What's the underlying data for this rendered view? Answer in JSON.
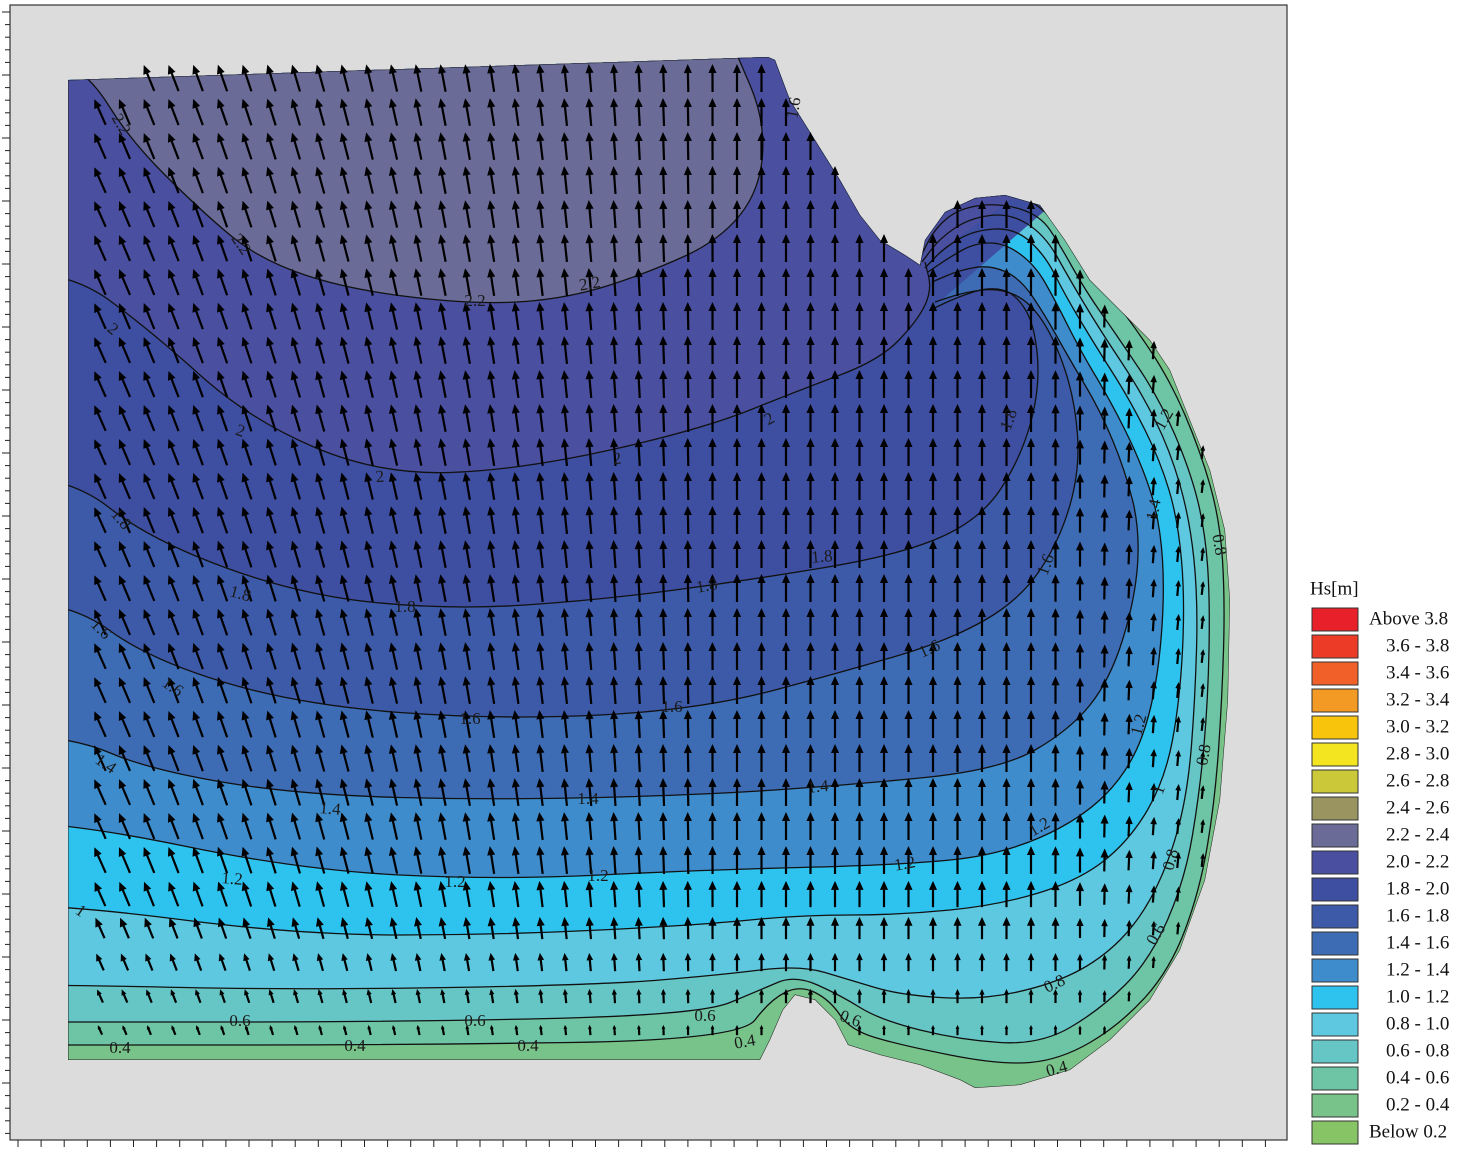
{
  "chart_data": {
    "type": "contour",
    "legend_title": "Hs[m]",
    "legend": [
      {
        "label": "Above 3.8",
        "color": "#e8202a"
      },
      {
        "label": "3.6 - 3.8",
        "color": "#ec3c27"
      },
      {
        "label": "3.4 - 3.6",
        "color": "#f06028"
      },
      {
        "label": "3.2 - 3.4",
        "color": "#f39a25"
      },
      {
        "label": "3.0 - 3.2",
        "color": "#f9c40c"
      },
      {
        "label": "2.8 - 3.0",
        "color": "#f3e520"
      },
      {
        "label": "2.6 - 2.8",
        "color": "#cbc93a"
      },
      {
        "label": "2.4 - 2.6",
        "color": "#9a9560"
      },
      {
        "label": "2.2 - 2.4",
        "color": "#6a6b96"
      },
      {
        "label": "2.0 - 2.2",
        "color": "#4a4f9f"
      },
      {
        "label": "1.8 - 2.0",
        "color": "#3e4ea0"
      },
      {
        "label": "1.6 - 1.8",
        "color": "#3d5aa8"
      },
      {
        "label": "1.4 - 1.6",
        "color": "#3d6cb4"
      },
      {
        "label": "1.2 - 1.4",
        "color": "#3f8ccc"
      },
      {
        "label": "1.0 - 1.2",
        "color": "#2ec3ef"
      },
      {
        "label": "0.8 - 1.0",
        "color": "#5ec8e0"
      },
      {
        "label": "0.6 - 0.8",
        "color": "#66c6c6"
      },
      {
        "label": "0.4 - 0.6",
        "color": "#6ec5a6"
      },
      {
        "label": "0.2 - 0.4",
        "color": "#78c389"
      },
      {
        "label": "Below 0.2",
        "color": "#86c466"
      }
    ],
    "contour_labels": [
      "2.2",
      "2.2",
      "2.2",
      "2.2",
      "2",
      "2",
      "2",
      "2",
      "2",
      "1.8",
      "1.8",
      "1.8",
      "1.8",
      "1.8",
      "1.8",
      "1.6",
      "1.6",
      "1.6",
      "1.6",
      "1.6",
      "1.6",
      "1.4",
      "1.4",
      "1.4",
      "1.4",
      "1.4",
      "1.2",
      "1.2",
      "1.2",
      "1.2",
      "1.2",
      "1.2",
      "1.2",
      "1",
      "1",
      "0.8",
      "0.8",
      "0.8",
      "0.8",
      "0.6",
      "0.6",
      "0.6",
      "0.6",
      "0.6",
      "0.4",
      "0.4",
      "0.4",
      "0.4",
      "0.4",
      "1.6"
    ]
  }
}
